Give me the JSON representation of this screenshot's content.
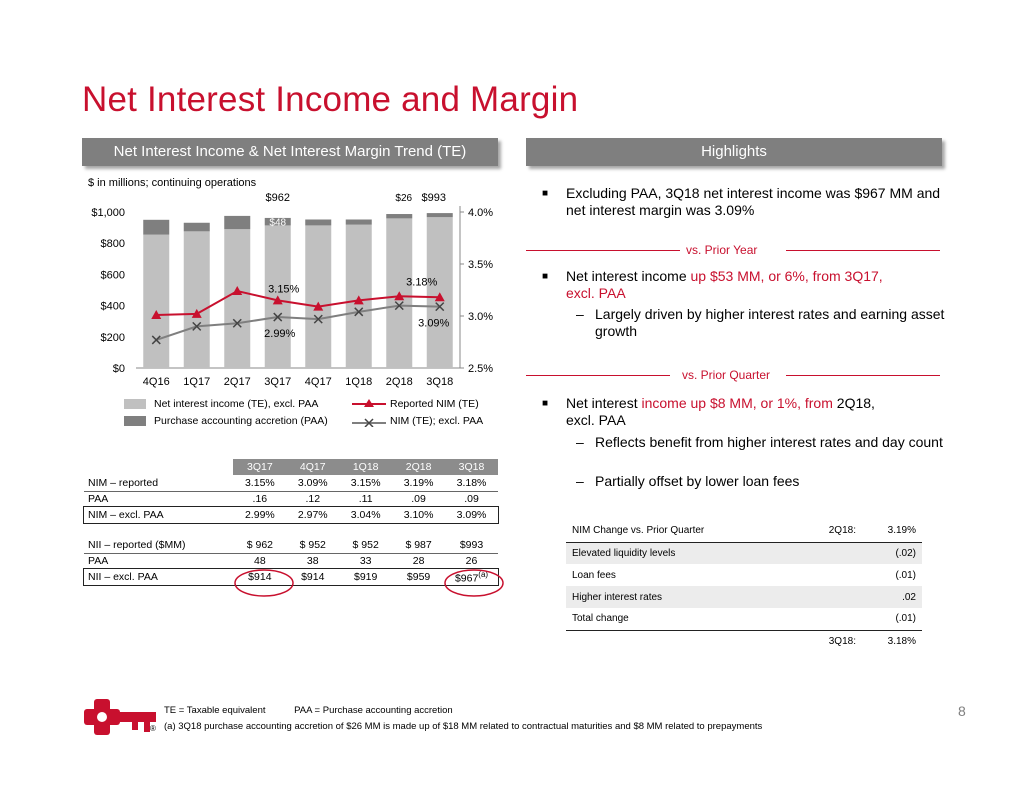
{
  "title": "Net Interest Income and Margin",
  "left_header": "Net Interest Income & Net Interest Margin Trend (TE)",
  "right_header": "Highlights",
  "units_note": "$ in millions; continuing operations",
  "colors": {
    "red": "#c8102e",
    "light_gray": "#c0c0c0",
    "dark_gray": "#7f7f7f"
  },
  "chart_data": {
    "type": "bar",
    "categories": [
      "4Q16",
      "1Q17",
      "2Q17",
      "3Q17",
      "4Q17",
      "1Q18",
      "2Q18",
      "3Q18"
    ],
    "series": [
      {
        "name": "Net interest income (TE), excl. PAA",
        "axis": "left",
        "values": [
          855,
          876,
          890,
          914,
          914,
          919,
          959,
          967
        ]
      },
      {
        "name": "Purchase accounting accretion (PAA)",
        "axis": "left",
        "values": [
          95,
          55,
          85,
          48,
          38,
          33,
          28,
          26
        ]
      },
      {
        "name": "Reported NIM (TE)",
        "axis": "right",
        "values": [
          3.01,
          3.02,
          3.24,
          3.15,
          3.09,
          3.15,
          3.19,
          3.18
        ]
      },
      {
        "name": "NIM (TE); excl. PAA",
        "axis": "right",
        "values": [
          2.77,
          2.9,
          2.93,
          2.99,
          2.97,
          3.04,
          3.1,
          3.09
        ]
      }
    ],
    "left_axis": {
      "ylim": [
        0,
        1000
      ],
      "ticks": [
        "$0",
        "$200",
        "$400",
        "$600",
        "$800",
        "$1,000"
      ]
    },
    "right_axis": {
      "ylim": [
        2.5,
        4.0
      ],
      "ticks": [
        "2.5%",
        "3.0%",
        "3.5%",
        "4.0%"
      ]
    },
    "annotations": {
      "top_962": "$962",
      "top_26": "$26",
      "top_993": "$993",
      "bar_48": "$48",
      "lbl_315": "3.15%",
      "lbl_318": "3.18%",
      "lbl_299": "2.99%",
      "lbl_309": "3.09%"
    }
  },
  "legend": {
    "nii": "Net interest income (TE), excl. PAA",
    "paa": "Purchase accounting accretion (PAA)",
    "reported": "Reported NIM (TE)",
    "excl": "NIM (TE); excl. PAA"
  },
  "table": {
    "columns": [
      "3Q17",
      "4Q17",
      "1Q18",
      "2Q18",
      "3Q18"
    ],
    "rows": [
      {
        "label": "NIM – reported",
        "values": [
          "3.15%",
          "3.09%",
          "3.15%",
          "3.19%",
          "3.18%"
        ]
      },
      {
        "label": "PAA",
        "values": [
          ".16",
          ".12",
          ".11",
          ".09",
          ".09"
        ]
      },
      {
        "label": "NIM – excl. PAA",
        "values": [
          "2.99%",
          "2.97%",
          "3.04%",
          "3.10%",
          "3.09%"
        ]
      },
      {
        "label": "NII – reported ($MM)",
        "values": [
          "$ 962",
          "$ 952",
          "$ 952",
          "$ 987",
          "$993"
        ]
      },
      {
        "label": "PAA",
        "values": [
          "48",
          "38",
          "33",
          "28",
          "26"
        ]
      },
      {
        "label": "NII – excl. PAA",
        "values": [
          "$914",
          "$914",
          "$919",
          "$959",
          "$967"
        ]
      }
    ],
    "footnote_mark": "(a)"
  },
  "highlights": {
    "b1": "Excluding PAA, 3Q18 net interest income was $967 MM and net interest margin was 3.09%",
    "vs_prior_year": "vs. Prior Year",
    "b2_a": "Net interest income",
    "b2_b": " up $53 MM, or 6%, from 3Q17,",
    "b2_c": "excl. PAA",
    "s1": "Largely driven by higher interest rates and earning asset growth",
    "vs_prior_quarter": "vs. Prior Quarter",
    "b3_a": "Net interest",
    "b3_b": " income up $8 MM, or 1%, from ",
    "b3_c": "2Q18,",
    "b3_d": "excl. PAA",
    "s2": "Reflects benefit from higher interest rates and day count",
    "s3": "Partially offset by lower loan fees",
    "dash": "–",
    "bullet_mark": "■"
  },
  "nim_change": {
    "header": "NIM Change vs. Prior Quarter",
    "start_label": "2Q18:",
    "start_value": "3.19%",
    "rows": [
      {
        "label": "Elevated liquidity levels",
        "value": "(.02)"
      },
      {
        "label": "Loan fees",
        "value": "(.01)"
      },
      {
        "label": "Higher interest rates",
        "value": ".02"
      },
      {
        "label": "Total change",
        "value": "(.01)"
      }
    ],
    "end_label": "3Q18:",
    "end_value": "3.18%"
  },
  "footer": {
    "line1_a": "TE = Taxable equivalent",
    "line1_b": "PAA = Purchase accounting accretion",
    "line2": "(a)   3Q18 purchase accounting accretion of $26 MM is made up of $18 MM related to contractual maturities and $8 MM related to prepayments",
    "page": "8",
    "registered": "®"
  }
}
